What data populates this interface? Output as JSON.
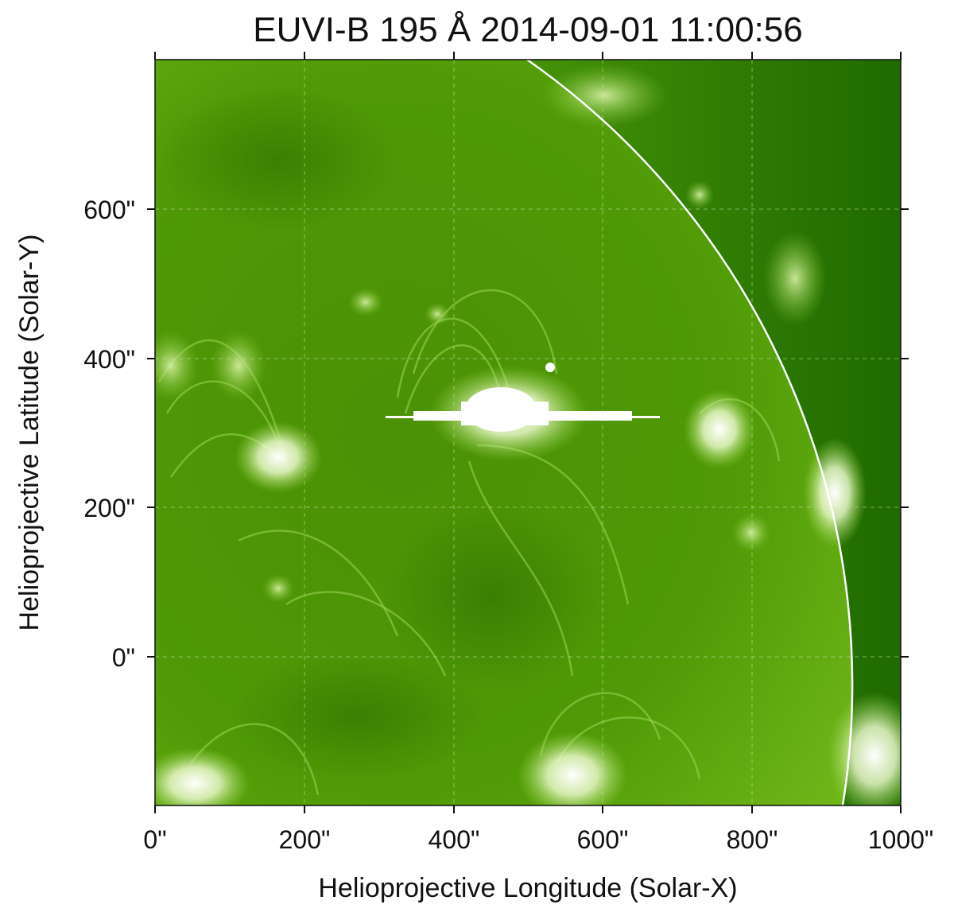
{
  "title": "EUVI-B 195 Å 2014-09-01 11:00:56",
  "xlabel": "Helioprojective Longitude (Solar-X)",
  "ylabel": "Helioprojective Latitude (Solar-Y)",
  "x_ticks": [
    "0\"",
    "200\"",
    "400\"",
    "600\"",
    "800\"",
    "1000\""
  ],
  "y_ticks": [
    "600\"",
    "400\"",
    "200\"",
    "0\""
  ],
  "x_range": [
    0,
    1000
  ],
  "y_range": [
    -200,
    800
  ],
  "colors": {
    "solar_disk": "#4f9a06",
    "off_limb": "#2f7a00",
    "bright_emission": "#ffffff",
    "axes": "#111111"
  },
  "annotations": {
    "limb_arc": "white arc marking the solar limb",
    "bright_feature": "saturated flare region with white horizontal bleed streak"
  }
}
